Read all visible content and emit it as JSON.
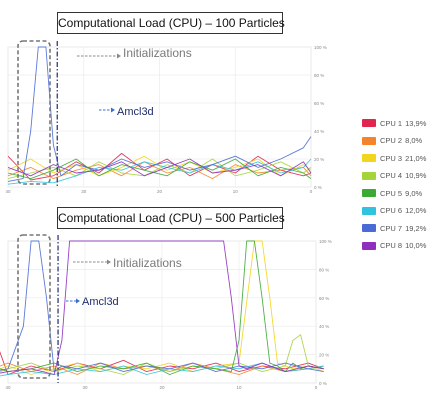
{
  "chart_data": [
    {
      "type": "line",
      "title": "Computational Load (CPU) – 100 Particles",
      "x_ticks": [
        40,
        30,
        20,
        10,
        0
      ],
      "y_ticks": [
        "100 %",
        "80 %",
        "60 %",
        "40 %",
        "20 %",
        "0 %"
      ],
      "xlim": [
        40,
        0
      ],
      "ylim": [
        0,
        100
      ],
      "grid": true,
      "annotations": [
        {
          "text": "Initializations",
          "x": 33.5,
          "y": 97
        },
        {
          "text": "Amcl3d",
          "x": 30.5,
          "y": 58
        }
      ],
      "series": [
        {
          "name": "CPU 1",
          "color": "#e0264f",
          "x": [
            40,
            37,
            34,
            31,
            28,
            25,
            22,
            19,
            16,
            13,
            10,
            7,
            4,
            1,
            0
          ],
          "y": [
            22,
            5,
            8,
            18,
            10,
            24,
            12,
            20,
            8,
            16,
            10,
            22,
            12,
            8,
            10
          ]
        },
        {
          "name": "CPU 2",
          "color": "#f5832a",
          "x": [
            40,
            37,
            34,
            31,
            28,
            25,
            22,
            19,
            16,
            13,
            10,
            7,
            4,
            1,
            0
          ],
          "y": [
            8,
            14,
            6,
            12,
            16,
            8,
            18,
            10,
            14,
            6,
            16,
            10,
            12,
            14,
            8
          ]
        },
        {
          "name": "CPU 3",
          "color": "#f2d51c",
          "x": [
            40,
            37,
            34,
            31,
            28,
            25,
            22,
            19,
            16,
            13,
            10,
            7,
            4,
            1,
            0
          ],
          "y": [
            12,
            20,
            10,
            16,
            8,
            14,
            22,
            12,
            18,
            10,
            14,
            20,
            8,
            16,
            12
          ]
        },
        {
          "name": "CPU 4",
          "color": "#a5d33a",
          "x": [
            40,
            37,
            34,
            31,
            28,
            25,
            22,
            19,
            16,
            13,
            10,
            7,
            4,
            1,
            0
          ],
          "y": [
            6,
            10,
            14,
            8,
            18,
            10,
            8,
            16,
            10,
            20,
            8,
            12,
            18,
            10,
            14
          ]
        },
        {
          "name": "CPU 5",
          "color": "#3aaa35",
          "x": [
            40,
            37,
            34,
            31,
            28,
            25,
            22,
            19,
            16,
            13,
            10,
            7,
            4,
            1,
            0
          ],
          "y": [
            10,
            6,
            12,
            20,
            8,
            16,
            12,
            8,
            18,
            12,
            20,
            8,
            14,
            10,
            6
          ]
        },
        {
          "name": "CPU 6",
          "color": "#2fc3df",
          "x": [
            40,
            37,
            34,
            31,
            28,
            25,
            22,
            19,
            16,
            13,
            10,
            7,
            4,
            1,
            0
          ],
          "y": [
            2,
            4,
            3,
            8,
            14,
            12,
            18,
            14,
            10,
            16,
            12,
            18,
            10,
            14,
            20
          ]
        },
        {
          "name": "CPU 7",
          "color": "#4a6bd6",
          "x": [
            40,
            38,
            37,
            36,
            35,
            34,
            33,
            31,
            28,
            25,
            22,
            19,
            16,
            13,
            10,
            7,
            4,
            1,
            0
          ],
          "y": [
            4,
            6,
            40,
            100,
            100,
            30,
            8,
            16,
            12,
            20,
            14,
            18,
            12,
            16,
            22,
            14,
            20,
            28,
            36
          ]
        },
        {
          "name": "CPU 8",
          "color": "#8e2fbe",
          "x": [
            40,
            37,
            34,
            31,
            28,
            25,
            22,
            19,
            16,
            13,
            10,
            7,
            4,
            1,
            0
          ],
          "y": [
            14,
            8,
            16,
            10,
            12,
            18,
            8,
            14,
            20,
            10,
            12,
            16,
            8,
            18,
            10
          ]
        }
      ]
    },
    {
      "type": "line",
      "title": "Computational Load (CPU) – 500 Particles",
      "x_ticks": [
        40,
        30,
        20,
        10,
        0
      ],
      "y_ticks": [
        "100 %",
        "80 %",
        "60 %",
        "40 %",
        "20 %",
        "0 %"
      ],
      "xlim": [
        40,
        0
      ],
      "ylim": [
        0,
        100
      ],
      "grid": true,
      "annotations": [
        {
          "text": "Initializations",
          "x": 33.5,
          "y": 89
        },
        {
          "text": "Amcl3d",
          "x": 36.5,
          "y": 71
        }
      ],
      "series": [
        {
          "name": "CPU 1",
          "color": "#e0264f",
          "x": [
            42,
            40,
            37,
            34,
            31,
            28,
            25,
            22,
            19,
            16,
            13,
            10,
            7,
            4,
            1,
            -1
          ],
          "y": [
            36,
            6,
            12,
            8,
            14,
            10,
            16,
            8,
            12,
            10,
            14,
            8,
            12,
            10,
            14,
            10
          ]
        },
        {
          "name": "CPU 2",
          "color": "#f5832a",
          "x": [
            42,
            40,
            37,
            34,
            31,
            28,
            25,
            22,
            19,
            16,
            13,
            10,
            7,
            4,
            1,
            -1
          ],
          "y": [
            10,
            14,
            8,
            12,
            6,
            14,
            10,
            12,
            8,
            14,
            10,
            6,
            12,
            8,
            10,
            12
          ]
        },
        {
          "name": "CPU 3",
          "color": "#f2d51c",
          "x": [
            42,
            40,
            37,
            34,
            31,
            28,
            25,
            22,
            19,
            16,
            13,
            10,
            8,
            7,
            6,
            5,
            3,
            1,
            -1
          ],
          "y": [
            8,
            12,
            6,
            10,
            14,
            8,
            12,
            10,
            14,
            8,
            12,
            14,
            100,
            100,
            60,
            14,
            10,
            12,
            8
          ]
        },
        {
          "name": "CPU 4",
          "color": "#a5d33a",
          "x": [
            42,
            40,
            37,
            34,
            31,
            28,
            25,
            22,
            19,
            16,
            13,
            10,
            7,
            4,
            3,
            2,
            1,
            -1
          ],
          "y": [
            6,
            10,
            14,
            8,
            12,
            10,
            6,
            14,
            8,
            12,
            10,
            14,
            8,
            12,
            30,
            34,
            12,
            10
          ]
        },
        {
          "name": "CPU 5",
          "color": "#3aaa35",
          "x": [
            42,
            40,
            37,
            34,
            31,
            28,
            25,
            22,
            19,
            16,
            13,
            11,
            10,
            9,
            8,
            7,
            6,
            5,
            4,
            3,
            2,
            1,
            -1
          ],
          "y": [
            12,
            8,
            10,
            14,
            8,
            12,
            10,
            14,
            6,
            12,
            10,
            8,
            30,
            100,
            100,
            60,
            14,
            12,
            8,
            14,
            10,
            12,
            10
          ]
        },
        {
          "name": "CPU 6",
          "color": "#2fc3df",
          "x": [
            42,
            40,
            37,
            34,
            31,
            28,
            25,
            22,
            19,
            16,
            13,
            10,
            7,
            4,
            1,
            -1
          ],
          "y": [
            4,
            6,
            8,
            6,
            10,
            8,
            12,
            6,
            10,
            8,
            12,
            10,
            14,
            8,
            10,
            12
          ]
        },
        {
          "name": "CPU 7",
          "color": "#4a6bd6",
          "x": [
            42,
            40,
            38,
            37,
            36,
            35,
            34,
            33,
            31,
            28,
            25,
            22,
            19,
            16,
            13,
            10,
            7,
            4,
            1,
            -1
          ],
          "y": [
            8,
            10,
            40,
            100,
            100,
            60,
            8,
            12,
            10,
            14,
            8,
            12,
            10,
            14,
            8,
            12,
            10,
            14,
            10,
            8
          ]
        },
        {
          "name": "CPU 8",
          "color": "#8e2fbe",
          "x": [
            42,
            40,
            37,
            34,
            33,
            32,
            30,
            25,
            20,
            15,
            12,
            11,
            10,
            9,
            7,
            4,
            1,
            -1
          ],
          "y": [
            6,
            8,
            10,
            6,
            30,
            100,
            100,
            100,
            100,
            100,
            100,
            60,
            12,
            10,
            14,
            8,
            12,
            10
          ]
        }
      ]
    }
  ],
  "legend": [
    {
      "name": "CPU 1",
      "value": "13,9%",
      "color": "#e0264f"
    },
    {
      "name": "CPU 2",
      "value": "8,0%",
      "color": "#f5832a"
    },
    {
      "name": "CPU 3",
      "value": "21,0%",
      "color": "#f2d51c"
    },
    {
      "name": "CPU 4",
      "value": "10,9%",
      "color": "#a5d33a"
    },
    {
      "name": "CPU 5",
      "value": "9,0%",
      "color": "#3aaa35"
    },
    {
      "name": "CPU 6",
      "value": "12,0%",
      "color": "#2fc3df"
    },
    {
      "name": "CPU 7",
      "value": "19,2%",
      "color": "#4a6bd6"
    },
    {
      "name": "CPU 8",
      "value": "10,0%",
      "color": "#8e2fbe"
    }
  ]
}
